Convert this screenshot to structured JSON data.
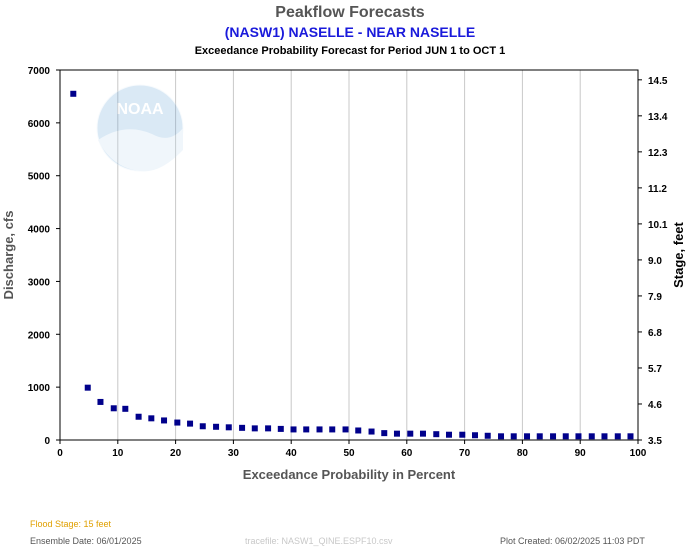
{
  "header": {
    "title": "Peakflow Forecasts",
    "subtitle": "(NASW1) NASELLE - NEAR NASELLE",
    "period": "Exceedance Probability Forecast for Period JUN 1 to OCT 1"
  },
  "watermark": {
    "text": "NOAA",
    "icon": "noaa-logo"
  },
  "footer": {
    "flood_stage": "Flood Stage: 15 feet",
    "ensemble_date": "Ensemble Date: 06/01/2025",
    "tracefile": "tracefile: NASW1_QINE.ESPF10.csv",
    "plot_created": "Plot Created: 06/02/2025 11:03 PDT"
  },
  "colors": {
    "marker": "#00008b",
    "grid": "#c8c8c8",
    "flood_stage": "#e0a000",
    "subtitle": "#1a1adb"
  },
  "chart_data": {
    "type": "scatter",
    "xlabel": "Exceedance Probability in Percent",
    "ylabel": "Discharge, cfs",
    "y2label": "Stage, feet",
    "xlim": [
      0,
      100
    ],
    "ylim": [
      0,
      7000
    ],
    "y2lim": [
      3.5,
      14.8
    ],
    "xticks": [
      "0",
      "10",
      "20",
      "30",
      "40",
      "50",
      "60",
      "70",
      "80",
      "90",
      "100"
    ],
    "yticks": [
      "0",
      "1000",
      "2000",
      "3000",
      "4000",
      "5000",
      "6000",
      "7000"
    ],
    "y2ticks": [
      "3.5",
      "4.6",
      "5.7",
      "6.8",
      "7.9",
      "9.0",
      "10.1",
      "11.2",
      "12.3",
      "13.4",
      "14.5"
    ],
    "grid": true,
    "x": [
      2.3,
      4.8,
      7.0,
      9.3,
      11.3,
      13.6,
      15.8,
      18.0,
      20.3,
      22.5,
      24.7,
      27.0,
      29.2,
      31.5,
      33.7,
      36.0,
      38.2,
      40.4,
      42.6,
      44.9,
      47.1,
      49.4,
      51.6,
      53.9,
      56.1,
      58.3,
      60.6,
      62.8,
      65.1,
      67.3,
      69.6,
      71.8,
      74.0,
      76.3,
      78.5,
      80.8,
      83.0,
      85.3,
      87.5,
      89.7,
      92.0,
      94.2,
      96.5,
      98.7
    ],
    "y": [
      6550,
      990,
      720,
      600,
      590,
      440,
      410,
      370,
      330,
      310,
      260,
      250,
      240,
      230,
      220,
      220,
      210,
      200,
      200,
      200,
      200,
      200,
      180,
      160,
      130,
      120,
      120,
      120,
      110,
      100,
      100,
      90,
      80,
      70,
      70,
      70,
      70,
      70,
      70,
      70,
      70,
      70,
      70,
      70
    ]
  }
}
